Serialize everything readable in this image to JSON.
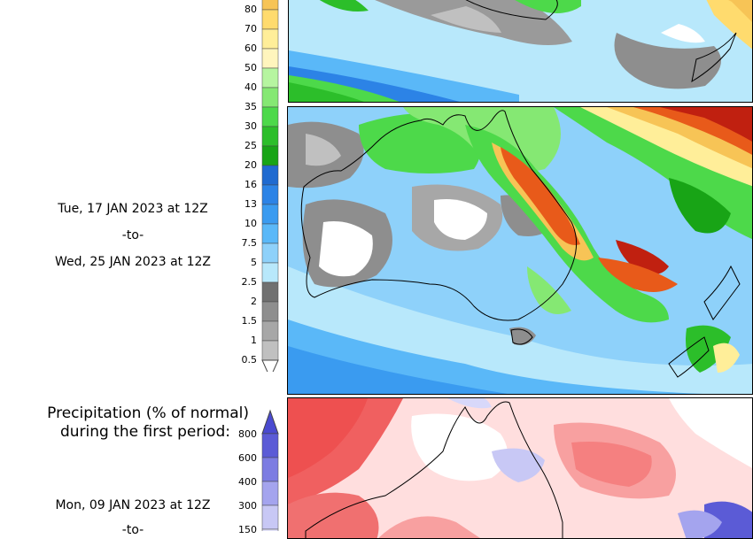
{
  "panel_top": {
    "colorbar": {
      "labels": [
        "80",
        "70",
        "60",
        "50",
        "40",
        "35",
        "30",
        "25",
        "20",
        "16",
        "13",
        "10",
        "7.5",
        "5",
        "2.5",
        "2",
        "1.5",
        "1",
        "0.5"
      ],
      "colors": [
        "#f7c456",
        "#ffdb6e",
        "#ffee99",
        "#fff5bd",
        "#b6f5a0",
        "#85e873",
        "#4dd94a",
        "#2cbe2a",
        "#18a416",
        "#1f6ad0",
        "#2c83e6",
        "#3a9bf0",
        "#5ab8f8",
        "#8ed1fa",
        "#b8e8fb",
        "#707070",
        "#8e8e8e",
        "#a7a7a7",
        "#c0c0c0"
      ]
    }
  },
  "period_top": {
    "start": "Tue, 17 JAN 2023 at 12Z",
    "separator": "-to-",
    "end": "Wed, 25 JAN 2023 at 12Z"
  },
  "panel_bottom": {
    "title_line1": "Precipitation (% of normal)",
    "title_line2": "during the first period:",
    "colorbar": {
      "labels": [
        "800",
        "600",
        "400",
        "300",
        "150"
      ],
      "colors": [
        "#5b5bd6",
        "#7c7ce2",
        "#a4a4ee",
        "#c8c8f5",
        "#e4e4fa"
      ],
      "arrow_color": "#4a4ad0"
    }
  },
  "period_bottom": {
    "start": "Mon, 09 JAN 2023 at 12Z",
    "separator": "-to-"
  }
}
